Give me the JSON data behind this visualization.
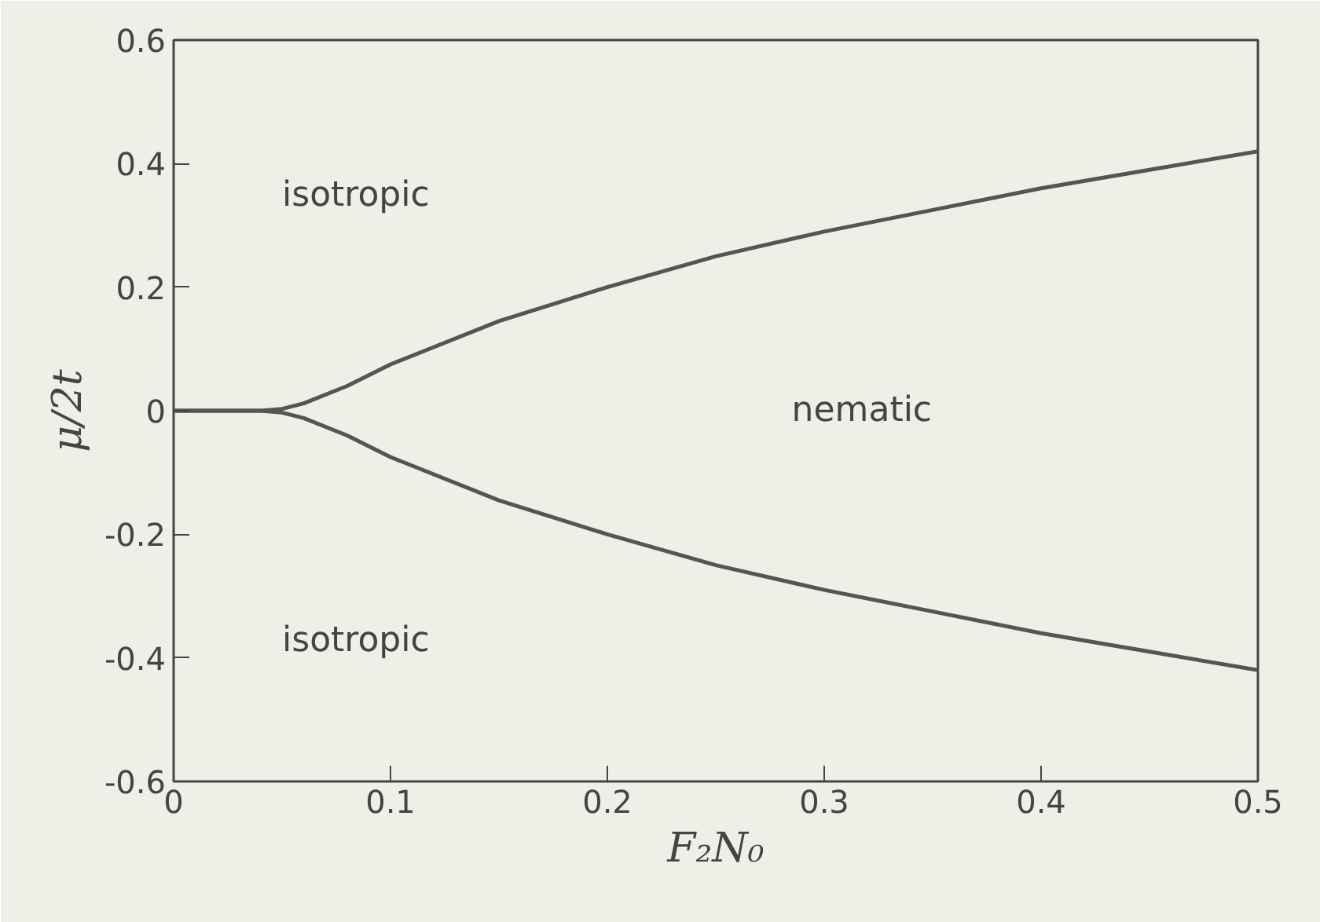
{
  "chart_data": {
    "type": "line",
    "xlabel": "F₂N₀",
    "ylabel": "μ/2t",
    "xlim": [
      0,
      0.5
    ],
    "ylim": [
      -0.6,
      0.6
    ],
    "xticks": [
      0,
      0.1,
      0.2,
      0.3,
      0.4,
      0.5
    ],
    "yticks": [
      -0.6,
      -0.4,
      -0.2,
      0,
      0.2,
      0.4,
      0.6
    ],
    "x": [
      0,
      0.02,
      0.04,
      0.05,
      0.06,
      0.08,
      0.1,
      0.15,
      0.2,
      0.25,
      0.3,
      0.35,
      0.4,
      0.45,
      0.5
    ],
    "series": [
      {
        "color": "#555555",
        "values": [
          0,
          0,
          0,
          0.003,
          0.012,
          0.04,
          0.075,
          0.145,
          0.2,
          0.25,
          0.29,
          0.325,
          0.36,
          0.39,
          0.42
        ]
      },
      {
        "color": "#555555",
        "values": [
          0,
          0,
          0,
          -0.003,
          -0.012,
          -0.04,
          -0.075,
          -0.145,
          -0.2,
          -0.25,
          -0.29,
          -0.325,
          -0.36,
          -0.39,
          -0.42
        ]
      }
    ],
    "annotations": [
      "isotropic",
      "nematic",
      "isotropic"
    ],
    "grid": false,
    "marker": "none",
    "line_style": "solid"
  }
}
